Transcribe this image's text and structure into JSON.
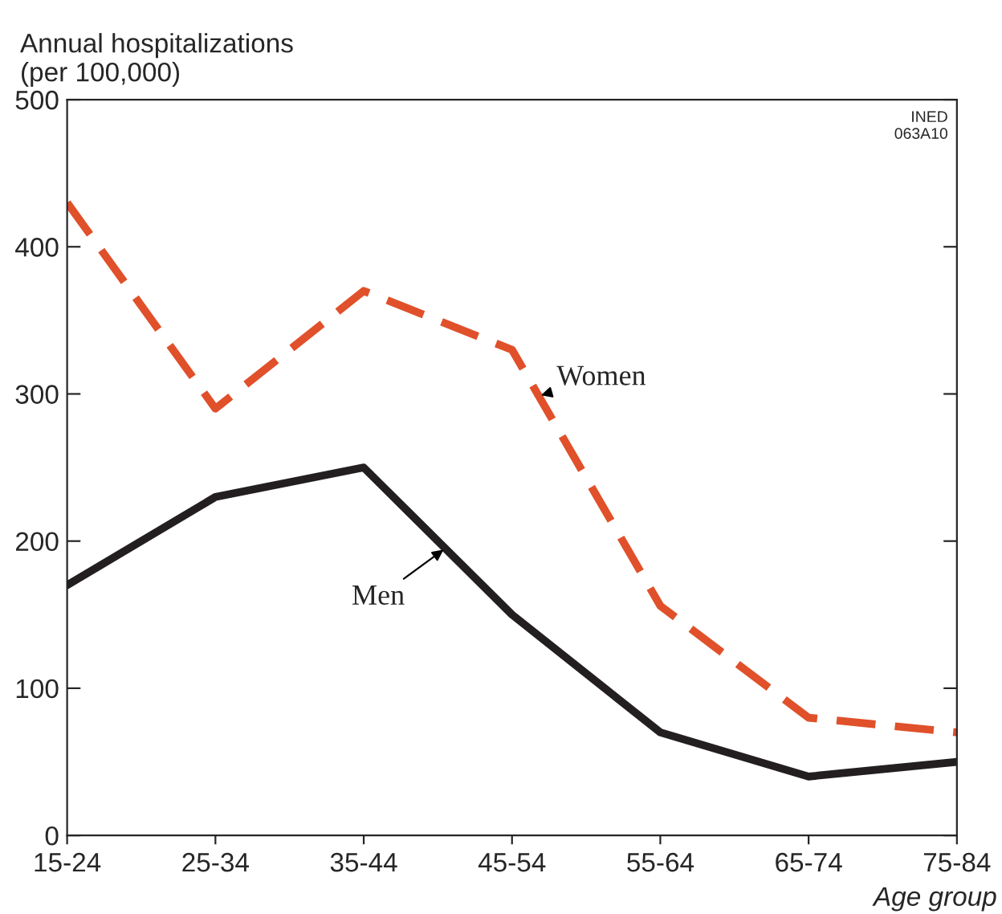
{
  "chart_data": {
    "type": "line",
    "ylabel": "Annual hospitalizations\n(per 100,000)",
    "xlabel": "Age group",
    "categories": [
      "15-24",
      "25-34",
      "35-44",
      "45-54",
      "55-64",
      "65-74",
      "75-84"
    ],
    "series": [
      {
        "name": "Women",
        "color": "#e0502a",
        "line_style": "dashed",
        "values": [
          430,
          290,
          370,
          330,
          156,
          80,
          70
        ]
      },
      {
        "name": "Men",
        "color": "#231f20",
        "line_style": "solid",
        "values": [
          170,
          230,
          250,
          150,
          70,
          40,
          50
        ]
      }
    ],
    "ylim": [
      0,
      500
    ],
    "yticks": [
      0,
      100,
      200,
      300,
      400,
      500
    ],
    "grid": false,
    "legend": false,
    "marker": "none",
    "annotations": [
      "INED\n063A10"
    ]
  }
}
